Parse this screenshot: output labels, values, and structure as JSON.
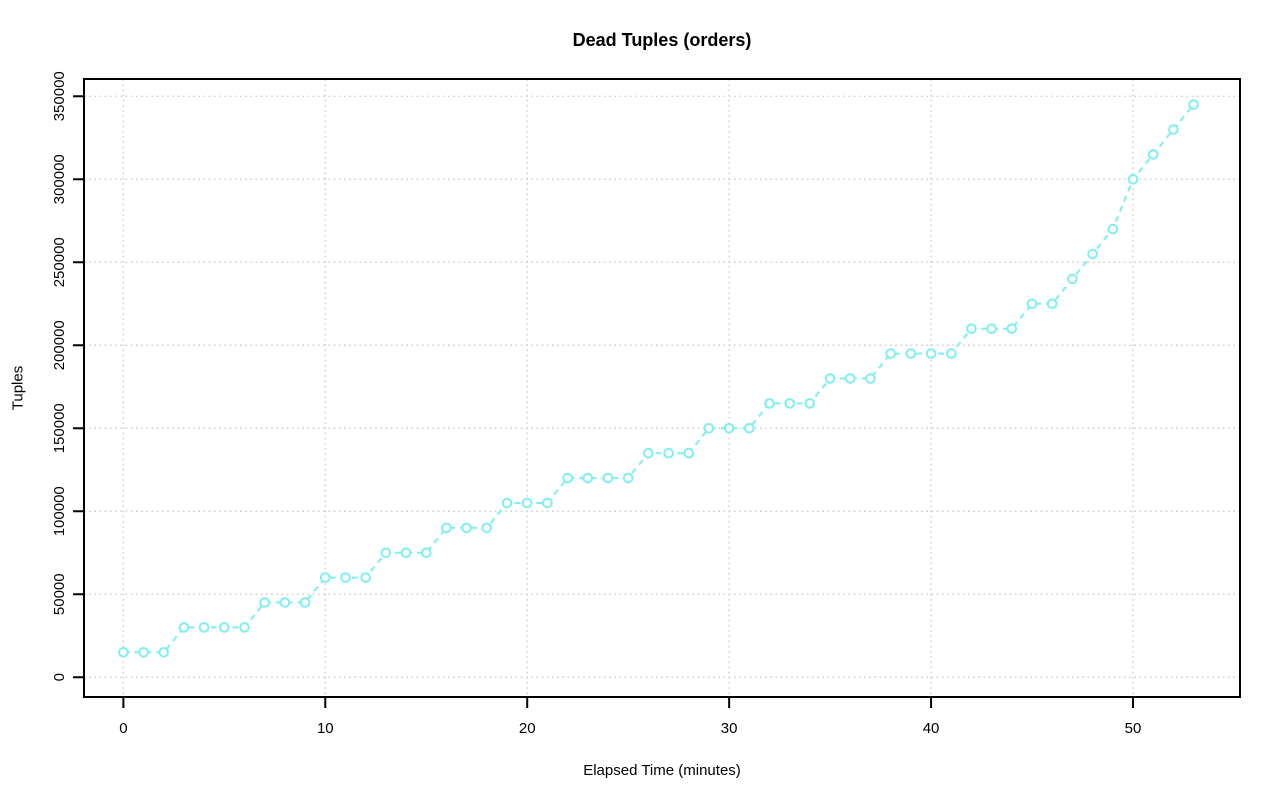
{
  "chart_data": {
    "type": "line",
    "title": "Dead Tuples (orders)",
    "xlabel": "Elapsed Time (minutes)",
    "ylabel": "Tuples",
    "x": [
      0,
      1,
      2,
      3,
      4,
      5,
      6,
      7,
      8,
      9,
      10,
      11,
      12,
      13,
      14,
      15,
      16,
      17,
      18,
      19,
      20,
      21,
      22,
      23,
      24,
      25,
      26,
      27,
      28,
      29,
      30,
      31,
      32,
      33,
      34,
      35,
      36,
      37,
      38,
      39,
      40,
      41,
      42,
      43,
      44,
      45,
      46,
      47,
      48,
      49,
      50,
      51,
      52,
      53
    ],
    "series": [
      {
        "name": "dead-tuples-orders",
        "values": [
          15000,
          15000,
          15000,
          30000,
          30000,
          30000,
          30000,
          45000,
          45000,
          45000,
          60000,
          60000,
          60000,
          75000,
          75000,
          75000,
          90000,
          90000,
          90000,
          105000,
          105000,
          105000,
          120000,
          120000,
          120000,
          120000,
          135000,
          135000,
          135000,
          150000,
          150000,
          150000,
          165000,
          165000,
          165000,
          180000,
          180000,
          180000,
          195000,
          195000,
          195000,
          195000,
          210000,
          210000,
          210000,
          225000,
          225000,
          240000,
          255000,
          270000,
          300000,
          315000,
          330000,
          345000
        ]
      }
    ],
    "x_ticks": [
      0,
      10,
      20,
      30,
      40,
      50
    ],
    "y_ticks": [
      0,
      50000,
      100000,
      150000,
      200000,
      250000,
      300000,
      350000
    ],
    "xlim": [
      -1.95,
      55.3
    ],
    "ylim": [
      -11900,
      360400
    ],
    "grid": true,
    "grid_style": "dotted",
    "legend_position": "none",
    "marker": "open-circle",
    "line_style": "dashed",
    "colors": {
      "series": "#7FEFEF",
      "grid": "#CFCFCF",
      "axis": "#000000",
      "text": "#000000",
      "background": "#FFFFFF"
    }
  }
}
